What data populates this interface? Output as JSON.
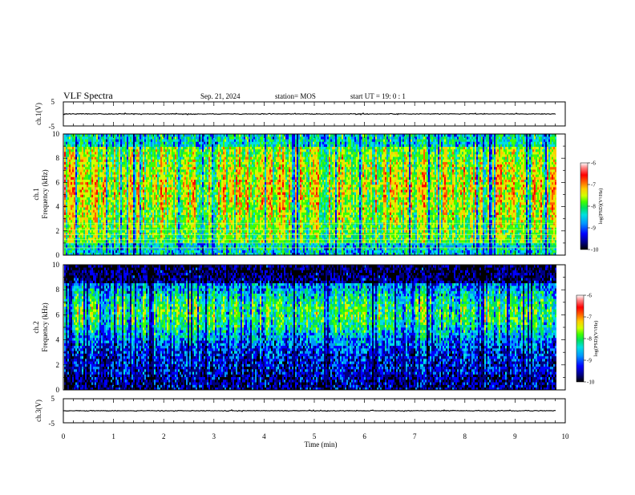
{
  "header": {
    "title": "VLF Spectra",
    "date": "Sep. 21, 2024",
    "station": "station= MOS",
    "start": "start  UT =   19: 0  : 1"
  },
  "chart_data": [
    {
      "type": "line",
      "panel": "ch1-waveform",
      "ylabel": "ch.1(V)",
      "y_ticks": [
        "5",
        "-5"
      ],
      "ylim": [
        -5,
        5
      ],
      "xlim": [
        0,
        10
      ],
      "trace_level": 0,
      "color": "#000000"
    },
    {
      "type": "heatmap",
      "panel": "ch1-spectrogram",
      "ylabel": "ch.1\nFrequency (kHz)",
      "y_ticks": [
        "0",
        "2",
        "4",
        "6",
        "8",
        "10"
      ],
      "ylim": [
        0,
        10
      ],
      "xlim": [
        0,
        10
      ],
      "data_extent_min": [
        0,
        9.82
      ],
      "colorbar": {
        "label": "log(PSD)(V²/Hz)",
        "ticks": [
          "-6",
          "-7",
          "-8",
          "-9",
          "-10"
        ],
        "range": [
          -10,
          -6
        ]
      }
    },
    {
      "type": "heatmap",
      "panel": "ch2-spectrogram",
      "ylabel": "ch.2\nFrequency (kHz)",
      "y_ticks": [
        "0",
        "2",
        "4",
        "6",
        "8",
        "10"
      ],
      "ylim": [
        0,
        10
      ],
      "xlim": [
        0,
        10
      ],
      "data_extent_min": [
        0,
        9.82
      ],
      "colorbar": {
        "label": "log(PSD)(V²/Hz)",
        "ticks": [
          "-6",
          "-7",
          "-8",
          "-9",
          "-10"
        ],
        "range": [
          -10,
          -6
        ]
      }
    },
    {
      "type": "line",
      "panel": "ch3-waveform",
      "ylabel": "ch.3(V)",
      "y_ticks": [
        "5",
        "-5"
      ],
      "ylim": [
        -5,
        5
      ],
      "xlim": [
        0,
        10
      ],
      "trace_level": 0,
      "color": "#000000"
    }
  ],
  "x_axis": {
    "label": "Time  (min)",
    "ticks": [
      "0",
      "1",
      "2",
      "3",
      "4",
      "5",
      "6",
      "7",
      "8",
      "9",
      "10"
    ]
  },
  "colormap": [
    "#000000",
    "#000080",
    "#0000ff",
    "#0096ff",
    "#00e0e0",
    "#00e060",
    "#40ff00",
    "#d0ff00",
    "#ffcc00",
    "#ff6000",
    "#ff0000",
    "#ff7f7f",
    "#ffffff"
  ]
}
